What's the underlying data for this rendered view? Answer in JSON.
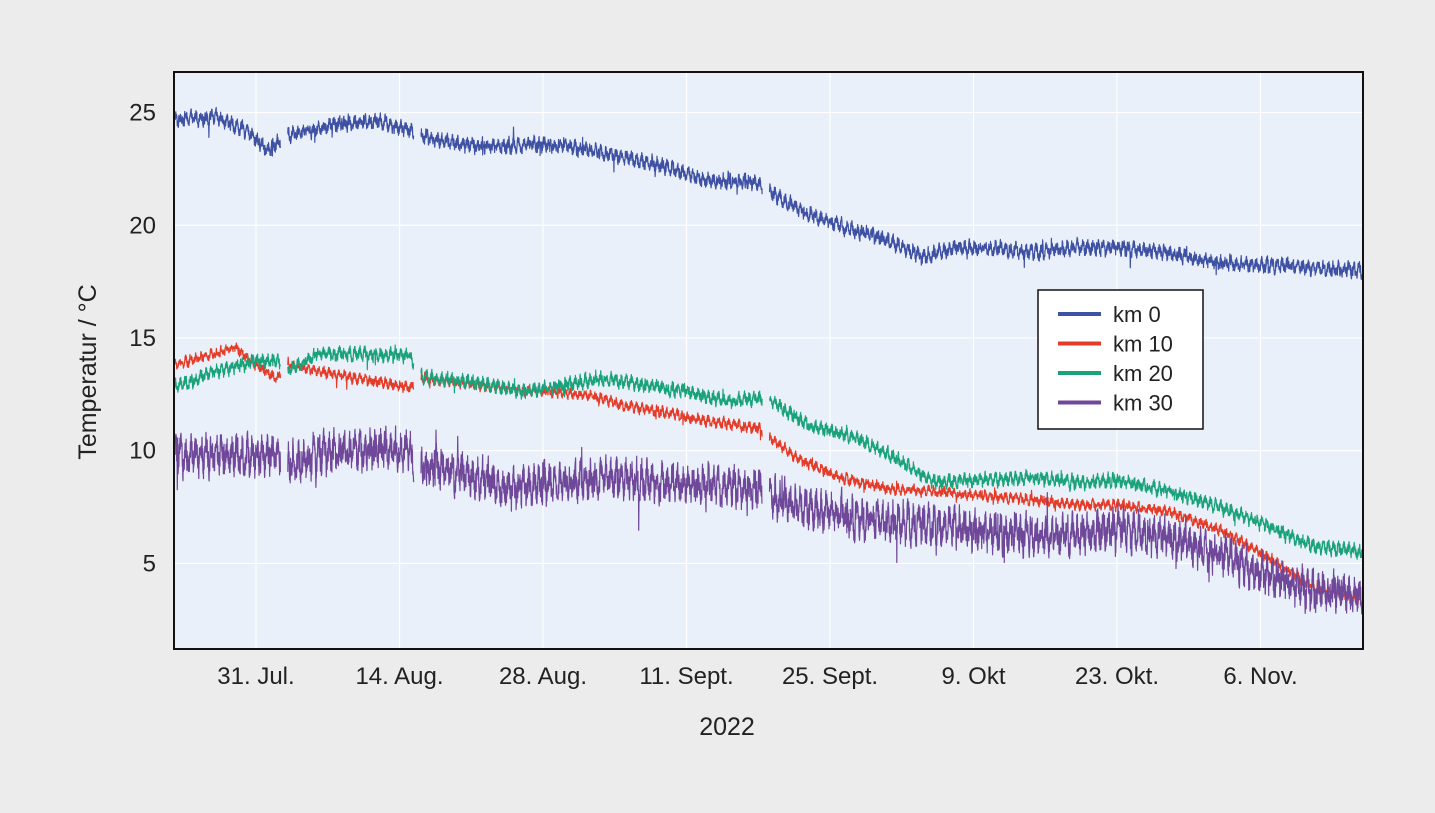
{
  "chart_data": {
    "type": "line",
    "title": "",
    "xlabel": "2022",
    "ylabel": "Temperatur / °C",
    "x_range": [
      "2022-07-23",
      "2022-11-16"
    ],
    "ylim": [
      1.2,
      26.8
    ],
    "y_ticks": [
      5,
      10,
      15,
      20,
      25
    ],
    "x_ticks": [
      {
        "date": "2022-07-31",
        "label": "31. Jul."
      },
      {
        "date": "2022-08-14",
        "label": "14. Aug."
      },
      {
        "date": "2022-08-28",
        "label": "28. Aug."
      },
      {
        "date": "2022-09-11",
        "label": "11. Sept."
      },
      {
        "date": "2022-09-25",
        "label": "25. Sept."
      },
      {
        "date": "2022-10-09",
        "label": "9. Okt"
      },
      {
        "date": "2022-10-23",
        "label": "23. Okt."
      },
      {
        "date": "2022-11-06",
        "label": "6. Nov."
      }
    ],
    "grid": true,
    "legend_position": "center-right",
    "data_gaps": [
      [
        "2022-08-02",
        "2022-08-03"
      ],
      [
        "2022-08-15",
        "2022-08-16"
      ],
      [
        "2022-09-18",
        "2022-09-19"
      ]
    ],
    "series": [
      {
        "name": "km 0",
        "color": "#3f51a3",
        "noise": 0.5,
        "points": [
          [
            "2022-07-23",
            24.7
          ],
          [
            "2022-07-27",
            24.8
          ],
          [
            "2022-07-30",
            24.2
          ],
          [
            "2022-08-01",
            23.4
          ],
          [
            "2022-08-02",
            23.6
          ],
          [
            "2022-08-03",
            24.0
          ],
          [
            "2022-08-08",
            24.5
          ],
          [
            "2022-08-12",
            24.6
          ],
          [
            "2022-08-15",
            24.2
          ],
          [
            "2022-08-16",
            24.0
          ],
          [
            "2022-08-20",
            23.6
          ],
          [
            "2022-08-23",
            23.5
          ],
          [
            "2022-08-28",
            23.6
          ],
          [
            "2022-09-01",
            23.4
          ],
          [
            "2022-09-05",
            23.0
          ],
          [
            "2022-09-09",
            22.6
          ],
          [
            "2022-09-13",
            22.0
          ],
          [
            "2022-09-18",
            21.9
          ],
          [
            "2022-09-19",
            21.5
          ],
          [
            "2022-09-23",
            20.5
          ],
          [
            "2022-09-27",
            19.8
          ],
          [
            "2022-10-01",
            19.3
          ],
          [
            "2022-10-04",
            18.6
          ],
          [
            "2022-10-07",
            19.0
          ],
          [
            "2022-10-11",
            19.0
          ],
          [
            "2022-10-15",
            18.8
          ],
          [
            "2022-10-19",
            19.0
          ],
          [
            "2022-10-23",
            19.0
          ],
          [
            "2022-10-28",
            18.8
          ],
          [
            "2022-11-02",
            18.3
          ],
          [
            "2022-11-08",
            18.2
          ],
          [
            "2022-11-16",
            18.0
          ]
        ]
      },
      {
        "name": "km 10",
        "color": "#e53c2a",
        "noise": 0.35,
        "points": [
          [
            "2022-07-23",
            13.8
          ],
          [
            "2022-07-27",
            14.3
          ],
          [
            "2022-07-29",
            14.6
          ],
          [
            "2022-07-31",
            13.8
          ],
          [
            "2022-08-02",
            13.2
          ],
          [
            "2022-08-03",
            13.9
          ],
          [
            "2022-08-05",
            13.6
          ],
          [
            "2022-08-10",
            13.2
          ],
          [
            "2022-08-15",
            12.8
          ],
          [
            "2022-08-16",
            13.2
          ],
          [
            "2022-08-22",
            12.9
          ],
          [
            "2022-08-28",
            12.6
          ],
          [
            "2022-09-01",
            12.5
          ],
          [
            "2022-09-05",
            12.0
          ],
          [
            "2022-09-09",
            11.7
          ],
          [
            "2022-09-13",
            11.3
          ],
          [
            "2022-09-18",
            11.0
          ],
          [
            "2022-09-19",
            10.6
          ],
          [
            "2022-09-22",
            9.6
          ],
          [
            "2022-09-26",
            8.8
          ],
          [
            "2022-10-01",
            8.3
          ],
          [
            "2022-10-05",
            8.2
          ],
          [
            "2022-10-10",
            8.0
          ],
          [
            "2022-10-15",
            7.8
          ],
          [
            "2022-10-19",
            7.6
          ],
          [
            "2022-10-23",
            7.6
          ],
          [
            "2022-10-28",
            7.3
          ],
          [
            "2022-11-02",
            6.5
          ],
          [
            "2022-11-07",
            5.2
          ],
          [
            "2022-11-11",
            4.0
          ],
          [
            "2022-11-16",
            3.3
          ]
        ]
      },
      {
        "name": "km 20",
        "color": "#1aa37a",
        "noise": 0.45,
        "points": [
          [
            "2022-07-23",
            12.8
          ],
          [
            "2022-07-27",
            13.5
          ],
          [
            "2022-07-31",
            14.0
          ],
          [
            "2022-08-02",
            14.0
          ],
          [
            "2022-08-03",
            13.5
          ],
          [
            "2022-08-06",
            14.3
          ],
          [
            "2022-08-10",
            14.3
          ],
          [
            "2022-08-15",
            14.2
          ],
          [
            "2022-08-16",
            13.3
          ],
          [
            "2022-08-22",
            13.0
          ],
          [
            "2022-08-26",
            12.6
          ],
          [
            "2022-08-30",
            12.9
          ],
          [
            "2022-09-03",
            13.2
          ],
          [
            "2022-09-07",
            12.9
          ],
          [
            "2022-09-11",
            12.6
          ],
          [
            "2022-09-15",
            12.2
          ],
          [
            "2022-09-18",
            12.3
          ],
          [
            "2022-09-19",
            12.3
          ],
          [
            "2022-09-23",
            11.1
          ],
          [
            "2022-09-28",
            10.5
          ],
          [
            "2022-10-02",
            9.5
          ],
          [
            "2022-10-05",
            8.6
          ],
          [
            "2022-10-10",
            8.7
          ],
          [
            "2022-10-15",
            8.8
          ],
          [
            "2022-10-19",
            8.6
          ],
          [
            "2022-10-23",
            8.7
          ],
          [
            "2022-10-28",
            8.2
          ],
          [
            "2022-11-02",
            7.5
          ],
          [
            "2022-11-07",
            6.6
          ],
          [
            "2022-11-11",
            5.8
          ],
          [
            "2022-11-16",
            5.5
          ]
        ]
      },
      {
        "name": "km 30",
        "color": "#70489a",
        "noise": 1.3,
        "points": [
          [
            "2022-07-23",
            9.7
          ],
          [
            "2022-07-27",
            9.8
          ],
          [
            "2022-07-31",
            9.8
          ],
          [
            "2022-08-02",
            9.8
          ],
          [
            "2022-08-03",
            9.4
          ],
          [
            "2022-08-07",
            9.9
          ],
          [
            "2022-08-11",
            10.0
          ],
          [
            "2022-08-15",
            10.0
          ],
          [
            "2022-08-16",
            9.3
          ],
          [
            "2022-08-20",
            9.0
          ],
          [
            "2022-08-25",
            8.3
          ],
          [
            "2022-08-30",
            8.6
          ],
          [
            "2022-09-04",
            8.8
          ],
          [
            "2022-09-09",
            8.5
          ],
          [
            "2022-09-13",
            8.4
          ],
          [
            "2022-09-18",
            8.3
          ],
          [
            "2022-09-19",
            8.0
          ],
          [
            "2022-09-23",
            7.4
          ],
          [
            "2022-09-28",
            7.0
          ],
          [
            "2022-10-02",
            6.8
          ],
          [
            "2022-10-07",
            6.6
          ],
          [
            "2022-10-12",
            6.3
          ],
          [
            "2022-10-17",
            6.2
          ],
          [
            "2022-10-23",
            6.6
          ],
          [
            "2022-10-28",
            6.1
          ],
          [
            "2022-11-02",
            5.4
          ],
          [
            "2022-11-07",
            4.4
          ],
          [
            "2022-11-11",
            3.8
          ],
          [
            "2022-11-16",
            3.7
          ]
        ]
      }
    ]
  }
}
